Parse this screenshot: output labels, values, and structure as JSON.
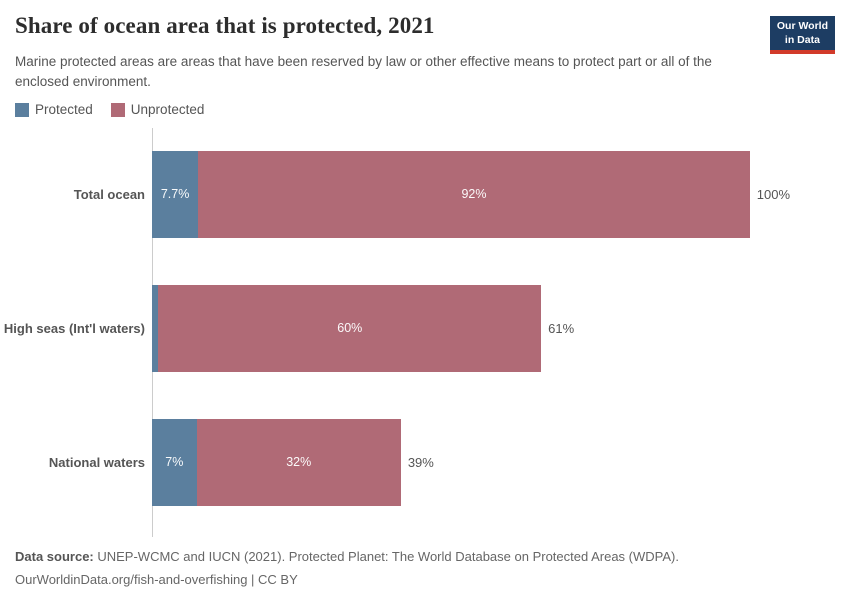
{
  "header": {
    "title": "Share of ocean area that is protected, 2021",
    "subtitle": "Marine protected areas are areas that have been reserved by law or other effective means to protect part or all of the enclosed environment.",
    "logo": {
      "line1": "Our World",
      "line2": "in Data",
      "bg": "#1d3d63",
      "accent": "#d23a2a"
    }
  },
  "legend": {
    "position": "top-left",
    "items": [
      {
        "label": "Protected",
        "color": "#5b7f9e"
      },
      {
        "label": "Unprotected",
        "color": "#b06a76"
      }
    ]
  },
  "chart_data": {
    "type": "bar",
    "stacked": true,
    "orientation": "horizontal",
    "unit": "%",
    "xlim": [
      0,
      100
    ],
    "grid": false,
    "categories": [
      "Total ocean",
      "High seas (Int'l waters)",
      "National waters"
    ],
    "series": [
      {
        "name": "Protected",
        "color": "#5b7f9e",
        "values": [
          7.7,
          1,
          7
        ]
      },
      {
        "name": "Unprotected",
        "color": "#b06a76",
        "values": [
          92,
          60,
          32
        ]
      }
    ],
    "totals": [
      100,
      61,
      39
    ],
    "bar_labels": [
      {
        "protected": "7.7%",
        "unprotected": "92%",
        "total": "100%"
      },
      {
        "protected": "",
        "unprotected": "60%",
        "total": "61%"
      },
      {
        "protected": "7%",
        "unprotected": "32%",
        "total": "39%"
      }
    ]
  },
  "footer": {
    "datasource_label": "Data source:",
    "datasource_text": " UNEP-WCMC and IUCN (2021). Protected Planet: The World Database on Protected Areas (WDPA).",
    "link_text": "OurWorldinData.org/fish-and-overfishing",
    "license_suffix": " | CC BY"
  }
}
